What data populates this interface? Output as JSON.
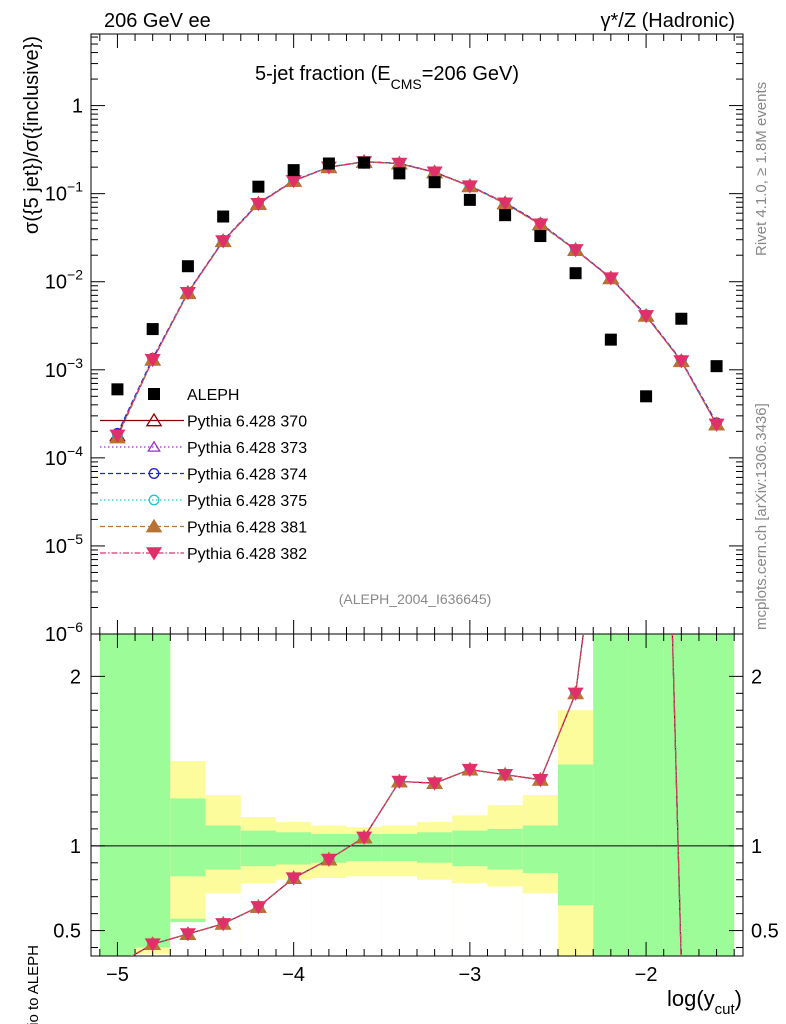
{
  "header": {
    "left_label": "206 GeV ee",
    "right_label": "γ*/Z (Hadronic)"
  },
  "side_labels": {
    "rivet": "Rivet 4.1.0, ≥ 1.8M events",
    "mcplots": "mcplots.cern.ch [arXiv:1306.3436]"
  },
  "colors": {
    "band_inner": "#9cfc98",
    "band_outer": "#fcfc9c",
    "data": "#000000"
  },
  "chart_data": [
    {
      "type": "scatter",
      "panel": "main",
      "title": "5-jet fraction (E_CMS=206 GeV)",
      "title_main": "5-jet fraction (E",
      "title_sub": "CMS",
      "title_rest": "=206 GeV)",
      "ylabel": "σ({5 jet})/σ({inclusive})",
      "yscale": "log",
      "ylim": [
        1e-06,
        6.5
      ],
      "xlim": [
        -5.15,
        -1.45
      ],
      "annotation": "(ALEPH_2004_I636645)",
      "x_ticks": [
        -5,
        -4,
        -3,
        -2
      ],
      "y_ticks": [
        {
          "value": 1,
          "base": "1",
          "exp": ""
        },
        {
          "value": 0.1,
          "base": "10",
          "exp": "−1"
        },
        {
          "value": 0.01,
          "base": "10",
          "exp": "−2"
        },
        {
          "value": 0.001,
          "base": "10",
          "exp": "−3"
        },
        {
          "value": 0.0001,
          "base": "10",
          "exp": "−4"
        },
        {
          "value": 1e-05,
          "base": "10",
          "exp": "−5"
        },
        {
          "value": 1e-06,
          "base": "10",
          "exp": "−6"
        }
      ],
      "x": [
        -5.0,
        -4.8,
        -4.6,
        -4.4,
        -4.2,
        -4.0,
        -3.8,
        -3.6,
        -3.4,
        -3.2,
        -3.0,
        -2.8,
        -2.6,
        -2.4,
        -2.2,
        -2.0,
        -1.8,
        -1.6
      ],
      "data": {
        "name": "ALEPH",
        "values": [
          0.0006,
          0.0029,
          0.015,
          0.055,
          0.12,
          0.185,
          0.22,
          0.225,
          0.17,
          0.135,
          0.085,
          0.057,
          0.033,
          0.0125,
          0.0022,
          0.0005,
          0.0038,
          0.0011
        ]
      },
      "series": [
        {
          "name": "Pythia 6.428 370",
          "color": "#8b0000",
          "dash": "",
          "marker": "triangle-open",
          "values": [
            0.00018,
            0.0013,
            0.0075,
            0.029,
            0.077,
            0.14,
            0.2,
            0.23,
            0.22,
            0.175,
            0.122,
            0.078,
            0.045,
            0.023,
            0.011,
            0.0041,
            0.00126,
            0.00024
          ]
        },
        {
          "name": "Pythia 6.428 373",
          "color": "#9932cc",
          "dash": "1.5,2.5",
          "marker": "triangle-open-small",
          "values": [
            0.00018,
            0.0013,
            0.0075,
            0.029,
            0.077,
            0.14,
            0.2,
            0.23,
            0.22,
            0.175,
            0.122,
            0.078,
            0.045,
            0.023,
            0.011,
            0.0041,
            0.00126,
            0.00024
          ]
        },
        {
          "name": "Pythia 6.428 374",
          "color": "#2020dd",
          "dash": "5,3",
          "marker": "circle-open",
          "values": [
            0.00019,
            0.00135,
            0.0076,
            0.0295,
            0.078,
            0.141,
            0.201,
            0.231,
            0.222,
            0.176,
            0.123,
            0.079,
            0.046,
            0.0232,
            0.0111,
            0.0042,
            0.00128,
            0.00025
          ]
        },
        {
          "name": "Pythia 6.428 375",
          "color": "#20c8c8",
          "dash": "1.5,2.5",
          "marker": "circle-open",
          "values": [
            0.00018,
            0.0013,
            0.0075,
            0.029,
            0.077,
            0.14,
            0.2,
            0.23,
            0.22,
            0.175,
            0.122,
            0.078,
            0.045,
            0.023,
            0.011,
            0.0041,
            0.00126,
            0.00024
          ]
        },
        {
          "name": "Pythia 6.428 381",
          "color": "#b87333",
          "dash": "5,3",
          "marker": "triangle-filled",
          "values": [
            0.00017,
            0.0013,
            0.0074,
            0.0288,
            0.076,
            0.139,
            0.199,
            0.229,
            0.219,
            0.174,
            0.121,
            0.077,
            0.0445,
            0.0228,
            0.0109,
            0.0041,
            0.00125,
            0.00024
          ]
        },
        {
          "name": "Pythia 6.428 382",
          "color": "#e0306a",
          "dash": "6,2,1.5,2",
          "marker": "triangle-down-filled",
          "values": [
            0.00018,
            0.0013,
            0.0075,
            0.029,
            0.077,
            0.14,
            0.2,
            0.23,
            0.22,
            0.175,
            0.122,
            0.078,
            0.045,
            0.023,
            0.011,
            0.0041,
            0.00126,
            0.00024
          ]
        }
      ]
    },
    {
      "type": "line",
      "panel": "ratio",
      "ylabel": "Ratio to ALEPH",
      "xlabel": "log(y_cut)",
      "xlabel_main": "log(y",
      "xlabel_sub": "cut",
      "xlabel_rest": ")",
      "ylim": [
        0.35,
        2.25
      ],
      "xlim": [
        -5.15,
        -1.45
      ],
      "x_ticks": [
        -5,
        -4,
        -3,
        -2
      ],
      "x_tick_labels": [
        "−5",
        "−4",
        "−3",
        "−2"
      ],
      "y_ticks": [
        0.5,
        1,
        2
      ],
      "y_tick_labels": [
        "0.5",
        "1",
        "2"
      ],
      "reference": 1,
      "bands": {
        "edges": [
          -5.1,
          -4.9,
          -4.7,
          -4.5,
          -4.3,
          -4.1,
          -3.9,
          -3.7,
          -3.5,
          -3.3,
          -3.1,
          -2.9,
          -2.7,
          -2.5,
          -2.3,
          -2.1,
          -1.9,
          -1.7,
          -1.5
        ],
        "inner_low": [
          0.3,
          0.3,
          0.3,
          0.3,
          0.3,
          0.3,
          0.3,
          0.3,
          0.3,
          0.3,
          0.3,
          0.3,
          0.3,
          0.3,
          0.3,
          0.3,
          0.3,
          0.3
        ],
        "inner_high": [
          2.3,
          2.3,
          1.28,
          1.12,
          1.09,
          1.08,
          1.07,
          1.07,
          1.07,
          1.08,
          1.09,
          1.1,
          1.12,
          1.48,
          2.3,
          2.3,
          2.3,
          2.3
        ],
        "outer_low": [
          0.3,
          0.3,
          0.3,
          0.3,
          0.3,
          0.3,
          0.3,
          0.3,
          0.3,
          0.3,
          0.3,
          0.3,
          0.3,
          0.3,
          0.3,
          0.3,
          0.3,
          0.3
        ],
        "outer_high": [
          2.3,
          2.3,
          1.5,
          1.3,
          1.17,
          1.14,
          1.12,
          1.11,
          1.12,
          1.14,
          1.18,
          1.24,
          1.3,
          1.8,
          2.3,
          2.3,
          2.3,
          2.3
        ],
        "inner_low_gap": [
          0.3,
          0.3,
          0.3,
          0.3,
          0.3,
          0.3,
          0.3,
          0.3,
          0.3,
          0.3,
          0.3,
          0.3,
          0.3,
          0.3,
          0.3,
          0.3,
          0.3,
          0.3
        ],
        "green_bottom": [
          0.3,
          0.3,
          0.55,
          0.74,
          0.83,
          0.87,
          0.89,
          0.9,
          0.9,
          0.88,
          0.86,
          0.84,
          0.8,
          0.3,
          0.3,
          0.3,
          0.3,
          0.3
        ],
        "yellow_bottom": [
          0.3,
          0.3,
          0.3,
          0.3,
          0.3,
          0.3,
          0.3,
          0.3,
          0.3,
          0.3,
          0.3,
          0.3,
          0.3,
          0.3,
          0.3,
          0.3,
          0.3,
          0.3
        ],
        "white_top": [
          0.3,
          0.3,
          0.55,
          0.74,
          0.83,
          0.87,
          0.89,
          0.9,
          0.9,
          0.88,
          0.86,
          0.84,
          0.8,
          0.3,
          0.3,
          0.3,
          0.3,
          0.3
        ],
        "white_bottom_green": [
          0.3,
          0.3,
          0.3,
          0.3,
          0.3,
          0.3,
          0.3,
          0.3,
          0.3,
          0.3,
          0.3,
          0.3,
          0.3,
          0.3,
          0.3,
          0.3,
          0.3,
          0.3
        ]
      },
      "x": [
        -5.0,
        -4.8,
        -4.6,
        -4.4,
        -4.2,
        -4.0,
        -3.8,
        -3.6,
        -3.4,
        -3.2,
        -3.0,
        -2.8,
        -2.6,
        -2.4,
        -2.2,
        -2.0,
        -1.8,
        -1.6
      ],
      "series_values": [
        0.3,
        0.42,
        0.48,
        0.54,
        0.64,
        0.81,
        0.92,
        1.05,
        1.38,
        1.37,
        1.45,
        1.42,
        1.39,
        1.9,
        3.5,
        8.0,
        0.3,
        0.22
      ]
    }
  ]
}
